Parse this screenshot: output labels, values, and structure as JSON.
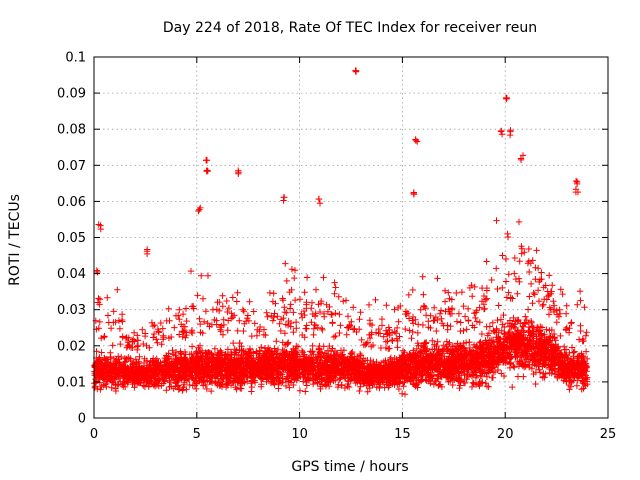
{
  "chart_data": {
    "type": "scatter",
    "title": "Day 224 of 2018, Rate Of TEC Index for receiver reun",
    "xlabel": "GPS time / hours",
    "ylabel": "ROTI / TECUs",
    "xlim": [
      0,
      25
    ],
    "ylim": [
      0,
      0.1
    ],
    "xticks": [
      "0",
      "5",
      "10",
      "15",
      "20",
      "25"
    ],
    "yticks": [
      "0",
      "0.01",
      "0.02",
      "0.03",
      "0.04",
      "0.05",
      "0.06",
      "0.07",
      "0.08",
      "0.09",
      "0.1"
    ],
    "grid": true,
    "marker": "+",
    "color": "#ff0000",
    "notable_points": [
      {
        "x": 0.2,
        "y": 0.041
      },
      {
        "x": 0.3,
        "y": 0.053
      },
      {
        "x": 2.6,
        "y": 0.046
      },
      {
        "x": 5.1,
        "y": 0.058
      },
      {
        "x": 5.5,
        "y": 0.072
      },
      {
        "x": 5.5,
        "y": 0.069
      },
      {
        "x": 7.0,
        "y": 0.068
      },
      {
        "x": 9.2,
        "y": 0.061
      },
      {
        "x": 11.0,
        "y": 0.06
      },
      {
        "x": 12.7,
        "y": 0.096
      },
      {
        "x": 15.7,
        "y": 0.077
      },
      {
        "x": 15.5,
        "y": 0.062
      },
      {
        "x": 19.8,
        "y": 0.079
      },
      {
        "x": 20.1,
        "y": 0.088
      },
      {
        "x": 20.2,
        "y": 0.079
      },
      {
        "x": 20.8,
        "y": 0.072
      },
      {
        "x": 23.5,
        "y": 0.065
      },
      {
        "x": 23.5,
        "y": 0.063
      }
    ],
    "density_profile": [
      {
        "x": 0,
        "base": 0.013,
        "spread": 0.008,
        "peak": 0.04
      },
      {
        "x": 1,
        "base": 0.013,
        "spread": 0.007,
        "peak": 0.045
      },
      {
        "x": 2,
        "base": 0.012,
        "spread": 0.006,
        "peak": 0.03
      },
      {
        "x": 3,
        "base": 0.013,
        "spread": 0.007,
        "peak": 0.035
      },
      {
        "x": 4,
        "base": 0.013,
        "spread": 0.008,
        "peak": 0.04
      },
      {
        "x": 5,
        "base": 0.014,
        "spread": 0.009,
        "peak": 0.05
      },
      {
        "x": 6,
        "base": 0.014,
        "spread": 0.009,
        "peak": 0.048
      },
      {
        "x": 7,
        "base": 0.014,
        "spread": 0.009,
        "peak": 0.05
      },
      {
        "x": 8,
        "base": 0.014,
        "spread": 0.008,
        "peak": 0.045
      },
      {
        "x": 9,
        "base": 0.015,
        "spread": 0.009,
        "peak": 0.055
      },
      {
        "x": 10,
        "base": 0.014,
        "spread": 0.008,
        "peak": 0.045
      },
      {
        "x": 11,
        "base": 0.014,
        "spread": 0.009,
        "peak": 0.05
      },
      {
        "x": 12,
        "base": 0.014,
        "spread": 0.008,
        "peak": 0.045
      },
      {
        "x": 13,
        "base": 0.013,
        "spread": 0.007,
        "peak": 0.04
      },
      {
        "x": 14,
        "base": 0.012,
        "spread": 0.006,
        "peak": 0.035
      },
      {
        "x": 15,
        "base": 0.013,
        "spread": 0.007,
        "peak": 0.04
      },
      {
        "x": 16,
        "base": 0.015,
        "spread": 0.009,
        "peak": 0.05
      },
      {
        "x": 17,
        "base": 0.015,
        "spread": 0.009,
        "peak": 0.05
      },
      {
        "x": 18,
        "base": 0.015,
        "spread": 0.009,
        "peak": 0.045
      },
      {
        "x": 19,
        "base": 0.016,
        "spread": 0.01,
        "peak": 0.055
      },
      {
        "x": 20,
        "base": 0.02,
        "spread": 0.013,
        "peak": 0.065
      },
      {
        "x": 21,
        "base": 0.02,
        "spread": 0.013,
        "peak": 0.06
      },
      {
        "x": 22,
        "base": 0.018,
        "spread": 0.011,
        "peak": 0.05
      },
      {
        "x": 23,
        "base": 0.014,
        "spread": 0.008,
        "peak": 0.045
      },
      {
        "x": 24,
        "base": 0.013,
        "spread": 0.007,
        "peak": 0.04
      }
    ]
  }
}
